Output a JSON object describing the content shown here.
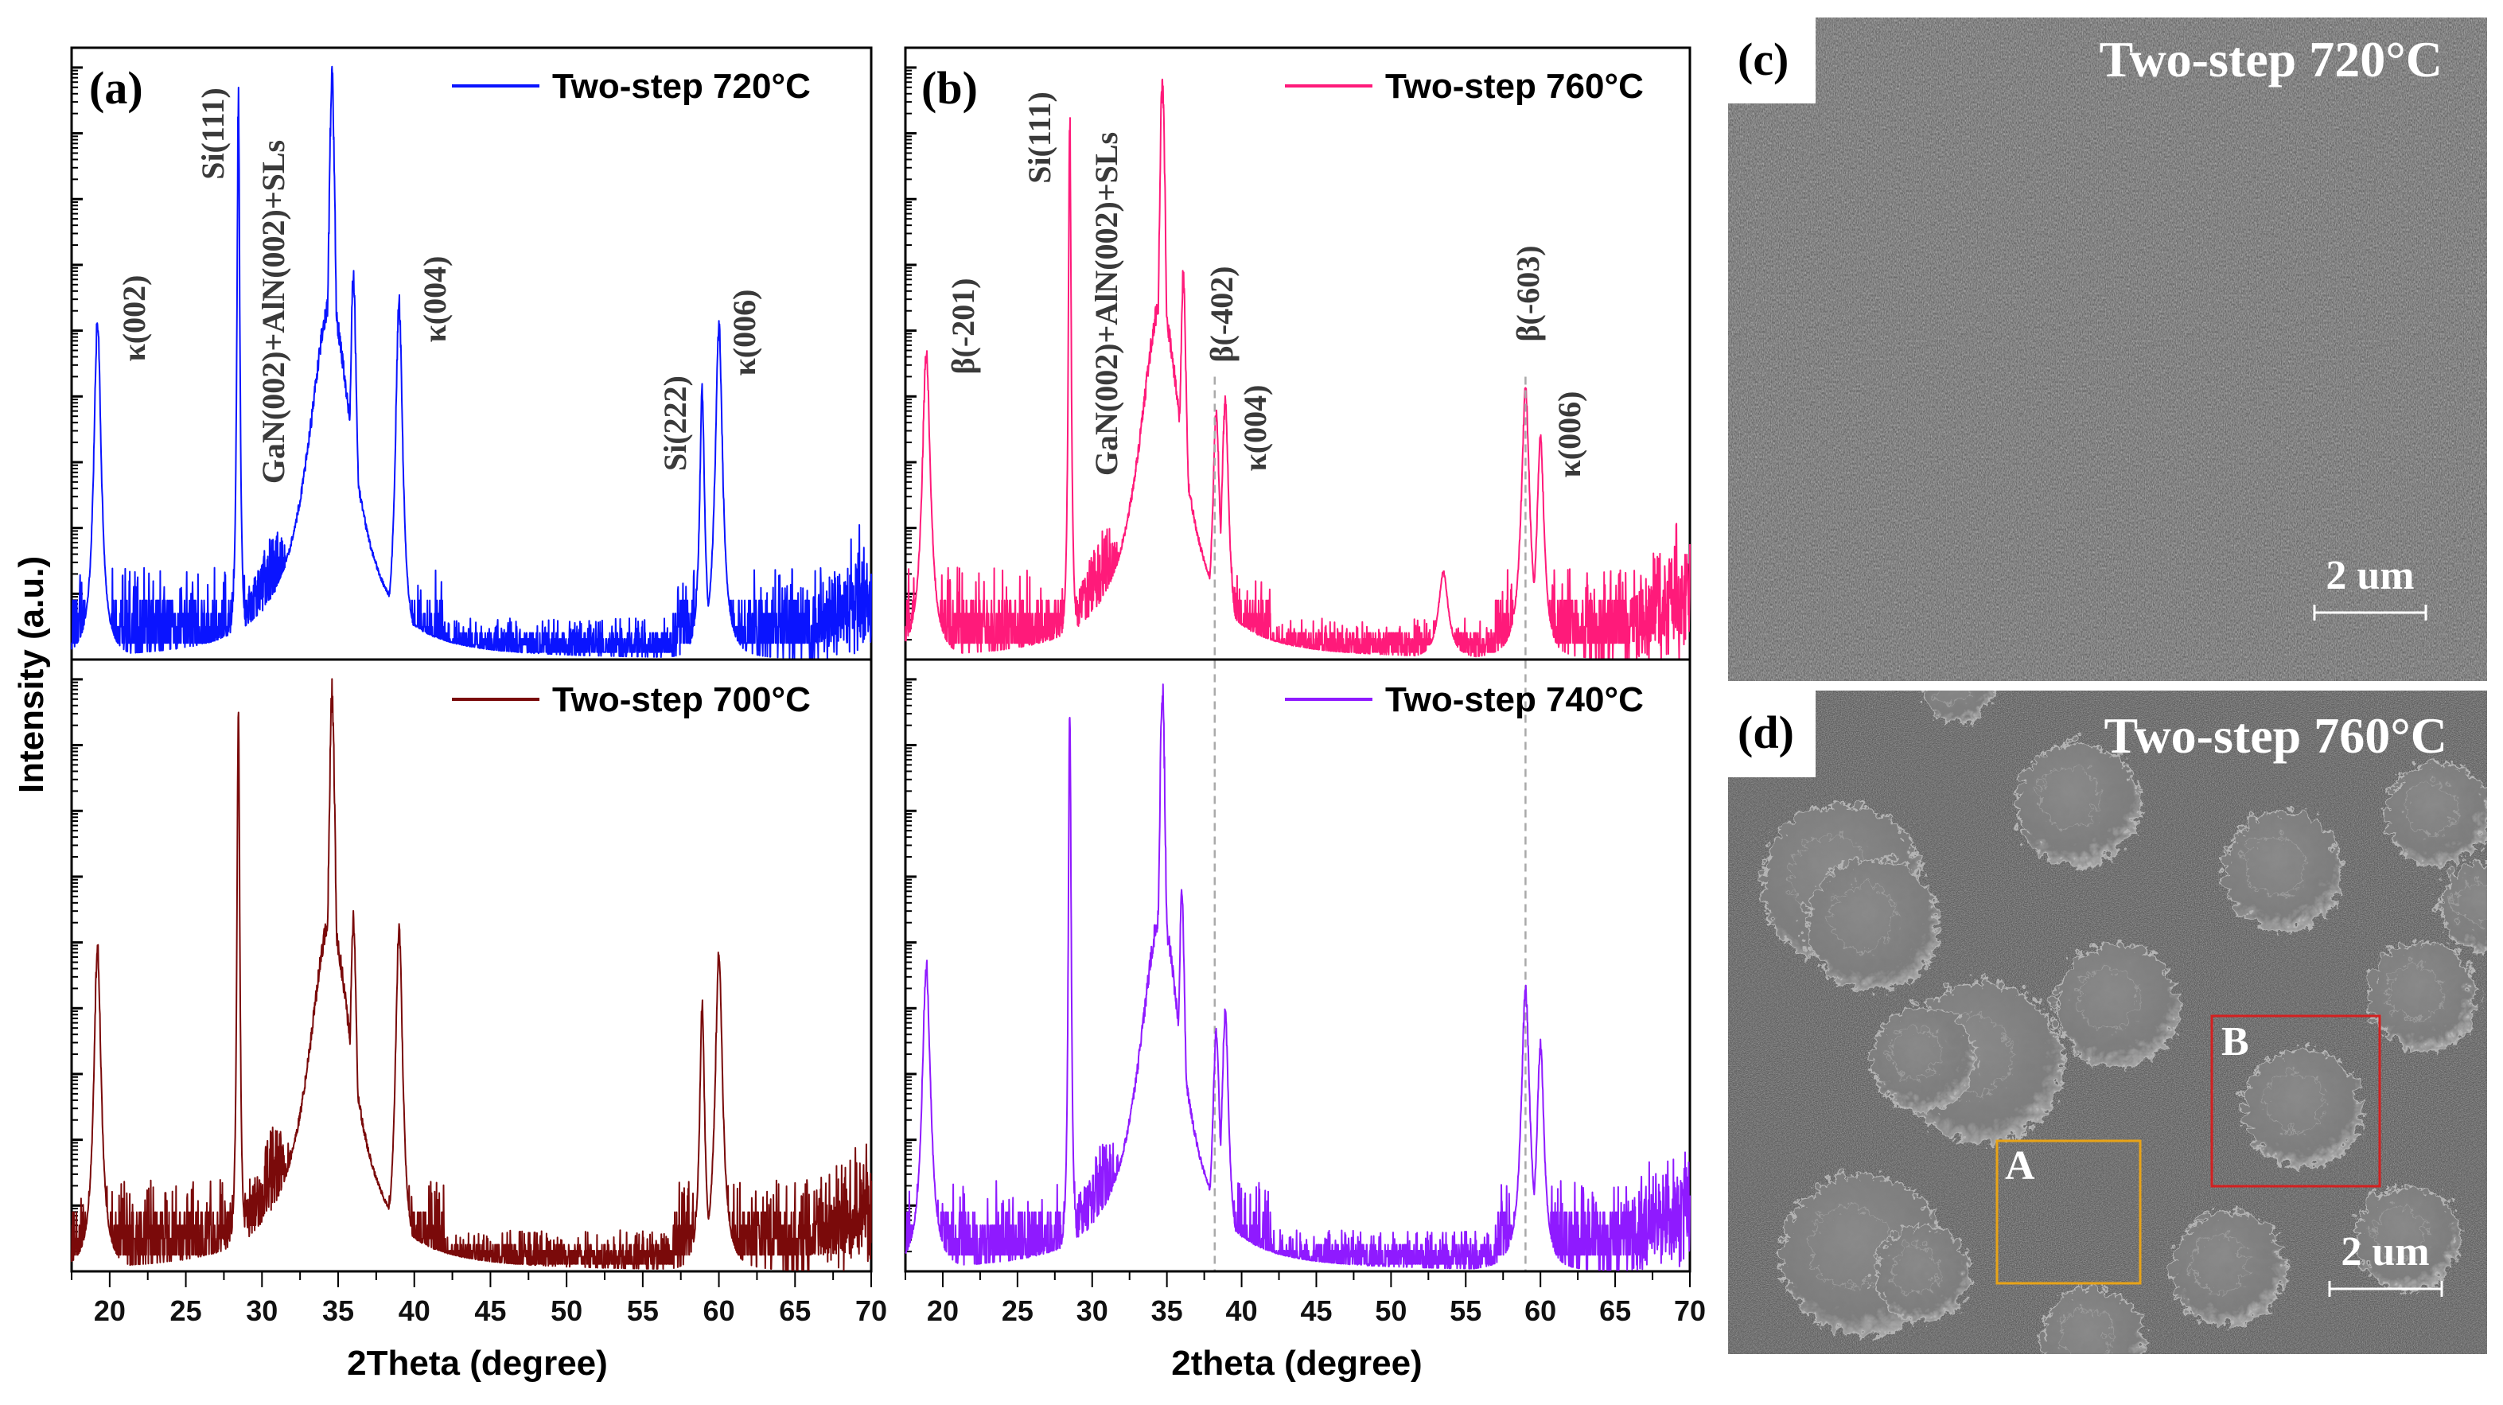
{
  "y_axis_title": "Intensity (a.u.)",
  "panels": {
    "a": {
      "label": "(a)",
      "x_title": "2Theta (degree)"
    },
    "b": {
      "label": "(b)",
      "x_title": "2theta (degree)"
    },
    "c": {
      "label": "(c)",
      "title": "Two-step 720°C",
      "scale_bar": "2 um"
    },
    "d": {
      "label": "(d)",
      "title": "Two-step 760°C",
      "scale_bar": "2 um",
      "box_a": "A",
      "box_b": "B",
      "box_a_color": "#e8a317",
      "box_b_color": "#d42020"
    }
  },
  "chart_data": [
    {
      "type": "line",
      "panel": "a",
      "position": "top",
      "xlabel": "2Theta (degree)",
      "ylabel": "Intensity (a.u.)",
      "xlim": [
        17.5,
        70
      ],
      "yscale": "log",
      "ylim": [
        1,
        2000000000.0
      ],
      "grid": false,
      "legend": "top-right",
      "x_ticks": [
        "20",
        "25",
        "30",
        "35",
        "40",
        "45",
        "50",
        "55",
        "60",
        "65",
        "70"
      ],
      "series": [
        {
          "name": "Two-step 720°C",
          "color": "#0a14ff",
          "peaks": [
            {
              "pos": 19.2,
              "intensity": 160000.0,
              "width": 0.3
            },
            {
              "pos": 28.45,
              "intensity": 400000000.0,
              "width": 0.12
            },
            {
              "pos": 34.6,
              "intensity": 800000000.0,
              "width": 0.35
            },
            {
              "pos": 34.5,
              "intensity": 300000.0,
              "width": 1.8
            },
            {
              "pos": 36.0,
              "intensity": 800000.0,
              "width": 0.3
            },
            {
              "pos": 39.0,
              "intensity": 300000.0,
              "width": 0.3
            },
            {
              "pos": 58.9,
              "intensity": 13000.0,
              "width": 0.2
            },
            {
              "pos": 60.0,
              "intensity": 130000.0,
              "width": 0.3
            },
            {
              "pos": 31.0,
              "intensity": 22,
              "width": 2.0
            }
          ]
        }
      ],
      "annotations": [
        "κ(002)",
        "Si(111)",
        "GaN(002)+AlN(002)+SLs",
        "κ(004)",
        "Si(222)",
        "κ(006)"
      ]
    },
    {
      "type": "line",
      "panel": "a",
      "position": "bottom",
      "xlim": [
        17.5,
        70
      ],
      "yscale": "log",
      "ylim": [
        1,
        2000000000.0
      ],
      "grid": false,
      "legend": "top-right",
      "series": [
        {
          "name": "Two-step 700°C",
          "color": "#7a0a0a",
          "peaks": [
            {
              "pos": 19.2,
              "intensity": 90000.0,
              "width": 0.3
            },
            {
              "pos": 28.45,
              "intensity": 400000000.0,
              "width": 0.12
            },
            {
              "pos": 34.6,
              "intensity": 700000000.0,
              "width": 0.35
            },
            {
              "pos": 34.5,
              "intensity": 250000.0,
              "width": 1.8
            },
            {
              "pos": 36.0,
              "intensity": 250000.0,
              "width": 0.3
            },
            {
              "pos": 39.0,
              "intensity": 200000.0,
              "width": 0.3
            },
            {
              "pos": 58.9,
              "intensity": 13000.0,
              "width": 0.2
            },
            {
              "pos": 60.0,
              "intensity": 70000.0,
              "width": 0.3
            },
            {
              "pos": 31.0,
              "intensity": 35,
              "width": 2.0
            }
          ]
        }
      ]
    },
    {
      "type": "line",
      "panel": "b",
      "position": "top",
      "xlabel": "2theta (degree)",
      "xlim": [
        17.5,
        70
      ],
      "yscale": "log",
      "ylim": [
        1,
        2000000000.0
      ],
      "grid": false,
      "legend": "top-right",
      "x_ticks": [
        "20",
        "25",
        "30",
        "35",
        "40",
        "45",
        "50",
        "55",
        "60",
        "65",
        "70"
      ],
      "series": [
        {
          "name": "Two-step 760°C",
          "color": "#ff1a7a",
          "peaks": [
            {
              "pos": 18.9,
              "intensity": 50000.0,
              "width": 0.35
            },
            {
              "pos": 28.5,
              "intensity": 200000000.0,
              "width": 0.12
            },
            {
              "pos": 34.7,
              "intensity": 800000000.0,
              "width": 0.35
            },
            {
              "pos": 34.6,
              "intensity": 300000.0,
              "width": 1.8
            },
            {
              "pos": 36.1,
              "intensity": 800000.0,
              "width": 0.3
            },
            {
              "pos": 38.3,
              "intensity": 6000.0,
              "width": 0.3
            },
            {
              "pos": 38.9,
              "intensity": 9000.0,
              "width": 0.3
            },
            {
              "pos": 53.5,
              "intensity": 22,
              "width": 0.4
            },
            {
              "pos": 59.0,
              "intensity": 13000.0,
              "width": 0.35
            },
            {
              "pos": 60.0,
              "intensity": 2600.0,
              "width": 0.3
            },
            {
              "pos": 31.0,
              "intensity": 25,
              "width": 2.0
            }
          ]
        }
      ],
      "reference_lines": [
        38.2,
        59.0
      ],
      "annotations": [
        "β(-201)",
        "Si(111)",
        "GaN(002)+AlN(002)+SLs",
        "β(-402)",
        "κ(004)",
        "β(-603)",
        "κ(006)"
      ]
    },
    {
      "type": "line",
      "panel": "b",
      "position": "bottom",
      "xlim": [
        17.5,
        70
      ],
      "yscale": "log",
      "ylim": [
        1,
        2000000000.0
      ],
      "grid": false,
      "legend": "top-right",
      "series": [
        {
          "name": "Two-step 740°C",
          "color": "#8f1aff",
          "peaks": [
            {
              "pos": 18.9,
              "intensity": 50000.0,
              "width": 0.35
            },
            {
              "pos": 28.5,
              "intensity": 500000000.0,
              "width": 0.12
            },
            {
              "pos": 34.7,
              "intensity": 800000000.0,
              "width": 0.35
            },
            {
              "pos": 34.6,
              "intensity": 300000.0,
              "width": 1.8
            },
            {
              "pos": 36.0,
              "intensity": 600000.0,
              "width": 0.3
            },
            {
              "pos": 38.3,
              "intensity": 5000.0,
              "width": 0.3
            },
            {
              "pos": 38.9,
              "intensity": 9000.0,
              "width": 0.3
            },
            {
              "pos": 59.0,
              "intensity": 20000.0,
              "width": 0.35
            },
            {
              "pos": 60.0,
              "intensity": 3000.0,
              "width": 0.3
            },
            {
              "pos": 31.0,
              "intensity": 25,
              "width": 2.0
            }
          ]
        }
      ]
    }
  ]
}
